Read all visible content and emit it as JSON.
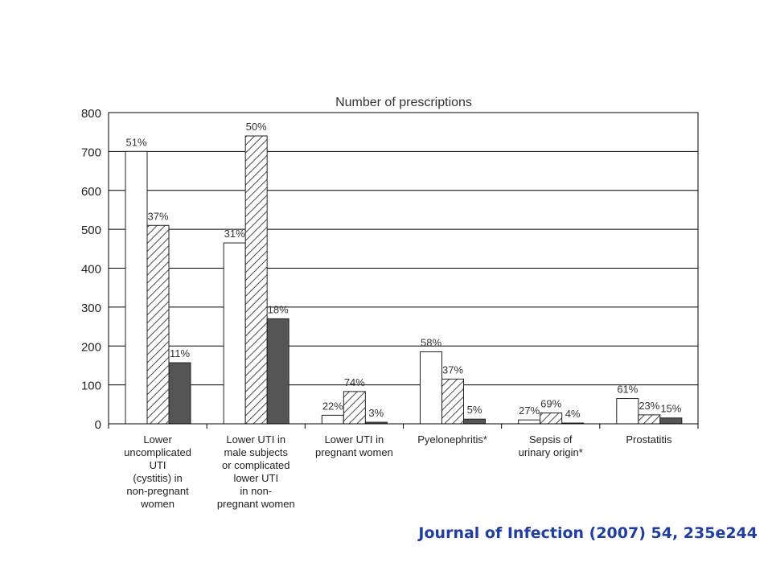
{
  "chart_data": {
    "type": "bar",
    "title": "Number of prescriptions",
    "categories": [
      [
        "Lower",
        "uncomplicated",
        "UTI",
        "(cystitis) in",
        "non-pregnant",
        "women"
      ],
      [
        "Lower UTI in",
        "male subjects",
        "or complicated",
        "lower UTI",
        "in non-",
        "pregnant women"
      ],
      [
        "Lower UTI in",
        "pregnant women"
      ],
      [
        "Pyelonephritis*"
      ],
      [
        "Sepsis of",
        "urinary origin*"
      ],
      [
        "Prostatitis"
      ]
    ],
    "series": [
      {
        "values": [
          700,
          465,
          22,
          185,
          10,
          65
        ],
        "labels": [
          "51%",
          "31%",
          "22%",
          "58%",
          "27%",
          "61%"
        ],
        "fill": "white"
      },
      {
        "values": [
          510,
          740,
          83,
          115,
          28,
          23
        ],
        "labels": [
          "37%",
          "50%",
          "74%",
          "37%",
          "69%",
          "23%"
        ],
        "fill": "hatched"
      },
      {
        "values": [
          157,
          270,
          4,
          12,
          2,
          15
        ],
        "labels": [
          "11%",
          "18%",
          "3%",
          "5%",
          "4%",
          "15%"
        ],
        "fill": "#555555"
      }
    ],
    "ylim": [
      0,
      800
    ],
    "yticks": [
      0,
      100,
      200,
      300,
      400,
      500,
      600,
      700,
      800
    ],
    "grid": true,
    "xlabel": "",
    "ylabel": ""
  },
  "citation": "Journal of Infection (2007) 54, 235e244",
  "colors": {
    "citation": "#1f3ea0",
    "dark_bar": "#555555",
    "gridline": "#000000"
  }
}
